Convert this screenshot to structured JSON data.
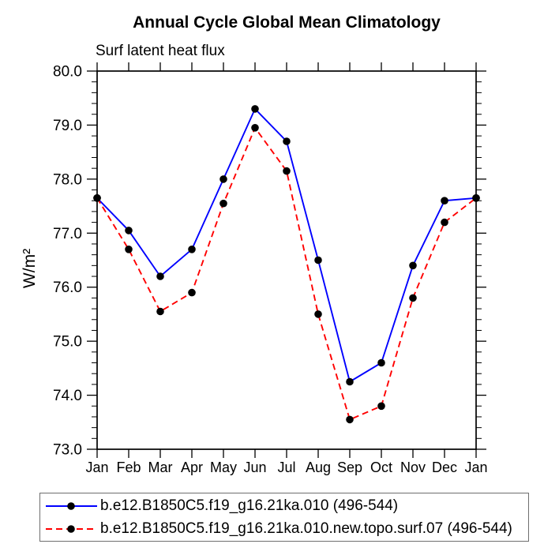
{
  "chart_data": {
    "type": "line",
    "title": "Annual Cycle Global Mean Climatology",
    "subtitle": "Surf latent heat flux",
    "ylabel": "W/m²",
    "categories": [
      "Jan",
      "Feb",
      "Mar",
      "Apr",
      "May",
      "Jun",
      "Jul",
      "Aug",
      "Sep",
      "Oct",
      "Nov",
      "Dec",
      "Jan"
    ],
    "series": [
      {
        "name": "b.e12.B1850C5.f19_g16.21ka.010 (496-544)",
        "color": "#0000ff",
        "line_style": "solid",
        "marker": "filled-circle",
        "marker_color": "#000000",
        "values": [
          77.65,
          77.05,
          76.2,
          76.7,
          78.0,
          79.3,
          78.7,
          76.5,
          74.25,
          74.6,
          76.4,
          77.6,
          77.65
        ]
      },
      {
        "name": "b.e12.B1850C5.f19_g16.21ka.010.new.topo.surf.07 (496-544)",
        "color": "#ff0000",
        "line_style": "dashed",
        "marker": "filled-circle",
        "marker_color": "#000000",
        "values": [
          77.65,
          76.7,
          75.55,
          75.9,
          77.55,
          78.95,
          78.15,
          75.5,
          73.55,
          73.8,
          75.8,
          77.2,
          77.65
        ]
      }
    ],
    "ylim": [
      73.0,
      80.0
    ],
    "ytick_labels": [
      "73.0",
      "74.0",
      "75.0",
      "76.0",
      "77.0",
      "78.0",
      "79.0",
      "80.0"
    ],
    "y_minor_step": 0.2,
    "grid": false,
    "legend_position": "bottom"
  }
}
